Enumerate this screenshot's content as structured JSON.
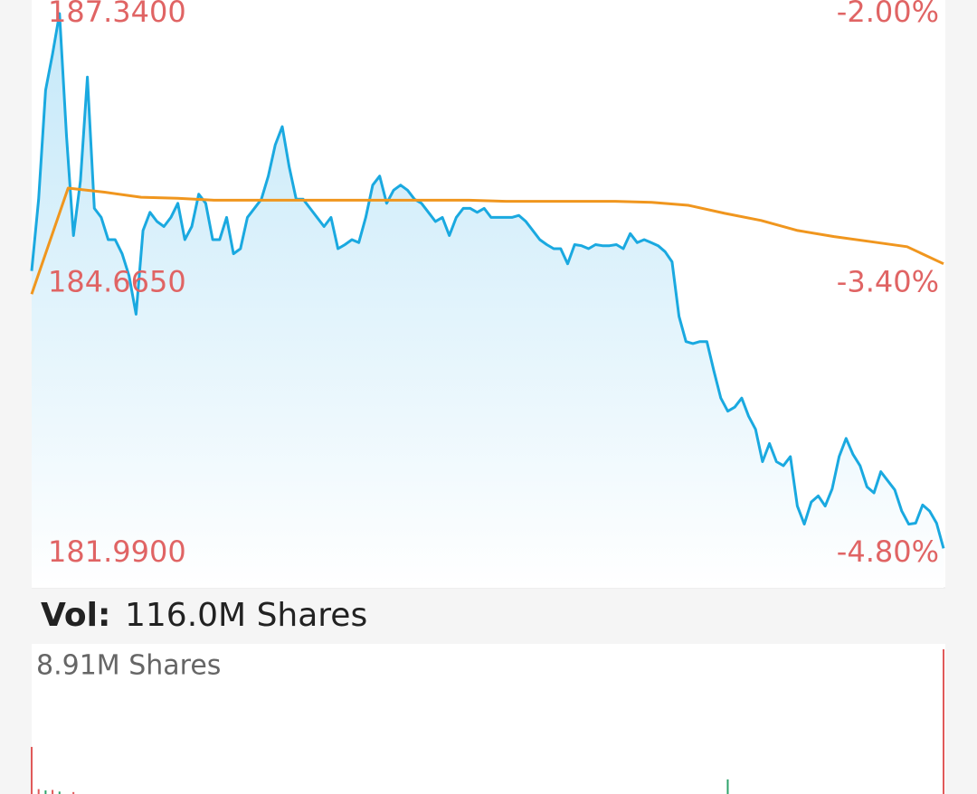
{
  "chart_data": [
    {
      "type": "line",
      "series": [
        {
          "color": "#1aa9e0",
          "area": true,
          "values": [
            184.79,
            185.5,
            186.58,
            186.94,
            187.34,
            186.13,
            185.14,
            185.68,
            186.71,
            185.41,
            185.32,
            185.1,
            185.1,
            184.96,
            184.74,
            184.36,
            185.19,
            185.37,
            185.28,
            185.23,
            185.32,
            185.46,
            185.1,
            185.23,
            185.55,
            185.46,
            185.1,
            185.1,
            185.32,
            184.96,
            185.01,
            185.32,
            185.41,
            185.5,
            185.73,
            186.04,
            186.22,
            185.82,
            185.5,
            185.5,
            185.41,
            185.32,
            185.23,
            185.32,
            185.01,
            185.05,
            185.1,
            185.07,
            185.32,
            185.64,
            185.73,
            185.46,
            185.59,
            185.64,
            185.59,
            185.5,
            185.46,
            185.37,
            185.28,
            185.32,
            185.14,
            185.32,
            185.41,
            185.41,
            185.37,
            185.41,
            185.32,
            185.32,
            185.32,
            185.32,
            185.34,
            185.28,
            185.19,
            185.1,
            185.05,
            185.01,
            185.01,
            184.86,
            185.05,
            185.04,
            185.01,
            185.05,
            185.04,
            185.04,
            185.05,
            185.01,
            185.16,
            185.07,
            185.1,
            185.07,
            185.04,
            184.98,
            184.88,
            184.34,
            184.09,
            184.07,
            184.09,
            184.09,
            183.8,
            183.53,
            183.4,
            183.44,
            183.53,
            183.35,
            183.22,
            182.9,
            183.08,
            182.9,
            182.86,
            182.95,
            182.46,
            182.28,
            182.5,
            182.56,
            182.46,
            182.63,
            182.95,
            183.13,
            182.97,
            182.86,
            182.65,
            182.59,
            182.8,
            182.71,
            182.62,
            182.41,
            182.28,
            182.29,
            182.47,
            182.41,
            182.29,
            182.04
          ]
        },
        {
          "color": "#f0961e",
          "values": [
            184.56,
            185.61,
            185.57,
            185.52,
            185.51,
            185.49,
            185.49,
            185.49,
            185.49,
            185.49,
            185.49,
            185.49,
            185.49,
            185.48,
            185.48,
            185.48,
            185.48,
            185.47,
            185.44,
            185.36,
            185.29,
            185.19,
            185.13,
            185.08,
            185.03,
            184.86
          ]
        }
      ],
      "ylim": [
        181.99,
        187.34
      ],
      "yticks": [
        {
          "value": 187.34,
          "label": "187.3400"
        },
        {
          "value": 184.665,
          "label": "184.6650"
        },
        {
          "value": 181.99,
          "label": "181.9900"
        }
      ],
      "y2lim": [
        -4.8,
        -2.0
      ],
      "y2ticks": [
        {
          "value": -2.0,
          "label": "-2.00%"
        },
        {
          "value": -3.4,
          "label": "-3.40%"
        },
        {
          "value": -4.8,
          "label": "-4.80%"
        }
      ]
    },
    {
      "type": "bar",
      "title": "Vol:",
      "total": "116.0M Shares",
      "x": [
        0,
        1,
        2,
        3,
        4,
        6,
        100,
        131
      ],
      "xlim": [
        0,
        131
      ],
      "series": [
        {
          "color": "#e05a5a",
          "values": [
            2.9,
            0.3,
            null,
            0.25,
            null,
            0.12,
            null,
            8.91
          ]
        },
        {
          "color": "#2ea36b",
          "values": [
            null,
            null,
            0.22,
            null,
            0.15,
            null,
            0.9,
            null
          ]
        }
      ],
      "ylim": [
        0,
        8.91
      ],
      "yticks": [
        {
          "value": 8.91,
          "label": "8.91M Shares"
        }
      ]
    }
  ]
}
